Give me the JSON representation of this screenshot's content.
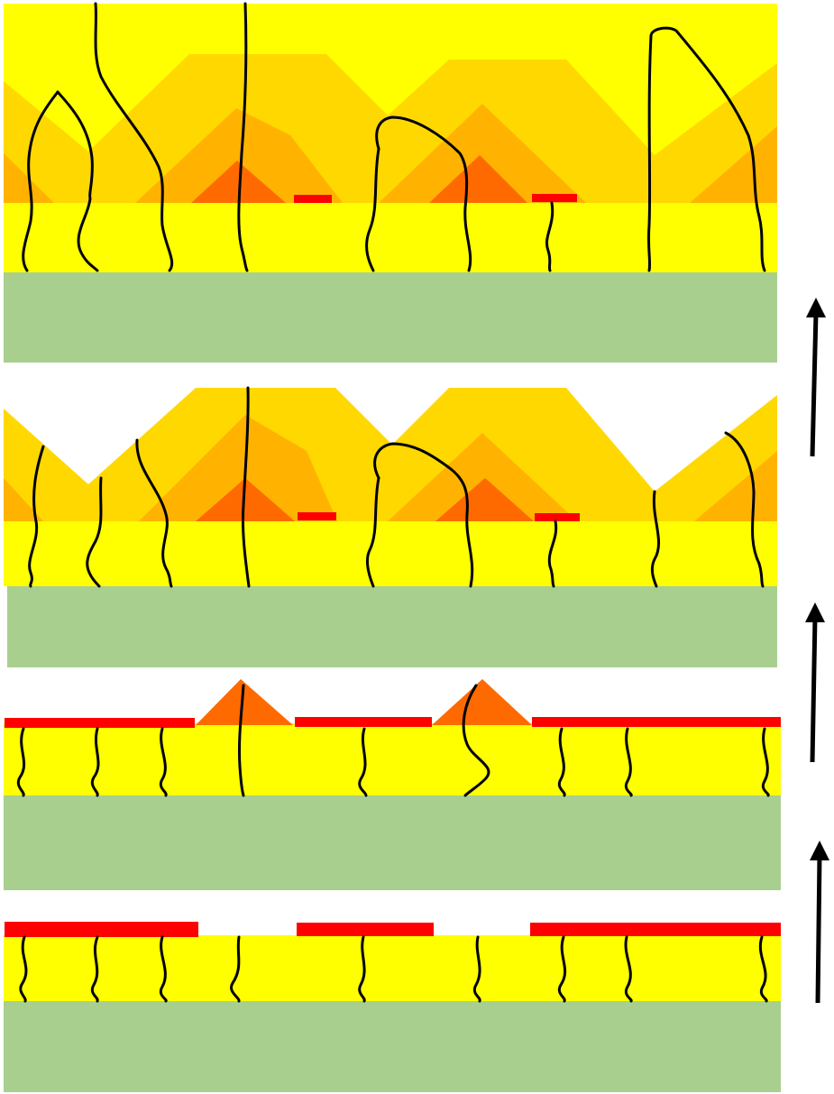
{
  "diagram": {
    "kind": "growth-sequence",
    "stages": [
      "stage-1",
      "stage-2",
      "stage-3",
      "stage-4"
    ],
    "arrows": 3,
    "colors": {
      "substrate": "#a9cf8f",
      "buffer_layer": "#ffff00",
      "mask": "#ff0000",
      "growth_front": "#ff6a00",
      "growth_mid": "#ffb300",
      "growth_outer": "#ffd800",
      "dislocation": "#000000",
      "arrow": "#000000"
    }
  }
}
